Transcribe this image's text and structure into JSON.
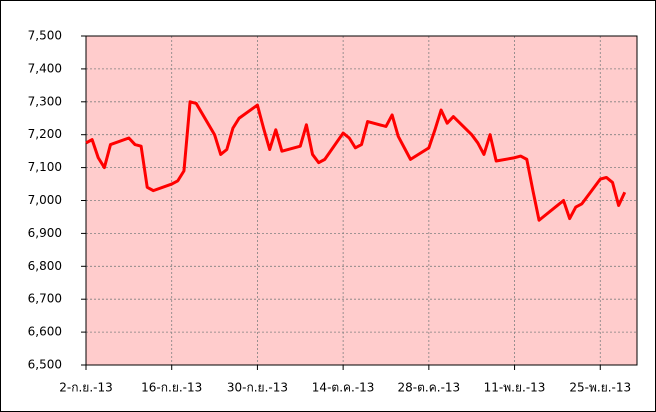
{
  "chart_data": {
    "type": "line",
    "x": [
      "2013-09-02",
      "2013-09-03",
      "2013-09-04",
      "2013-09-05",
      "2013-09-06",
      "2013-09-09",
      "2013-09-10",
      "2013-09-11",
      "2013-09-12",
      "2013-09-13",
      "2013-09-16",
      "2013-09-17",
      "2013-09-18",
      "2013-09-19",
      "2013-09-20",
      "2013-09-23",
      "2013-09-24",
      "2013-09-25",
      "2013-09-26",
      "2013-09-27",
      "2013-09-30",
      "2013-10-01",
      "2013-10-02",
      "2013-10-03",
      "2013-10-04",
      "2013-10-07",
      "2013-10-08",
      "2013-10-09",
      "2013-10-10",
      "2013-10-11",
      "2013-10-14",
      "2013-10-15",
      "2013-10-16",
      "2013-10-17",
      "2013-10-18",
      "2013-10-21",
      "2013-10-22",
      "2013-10-23",
      "2013-10-24",
      "2013-10-25",
      "2013-10-28",
      "2013-10-29",
      "2013-10-30",
      "2013-10-31",
      "2013-11-01",
      "2013-11-04",
      "2013-11-05",
      "2013-11-06",
      "2013-11-07",
      "2013-11-08",
      "2013-11-11",
      "2013-11-12",
      "2013-11-13",
      "2013-11-14",
      "2013-11-15",
      "2013-11-18",
      "2013-11-19",
      "2013-11-20",
      "2013-11-21",
      "2013-11-22",
      "2013-11-25",
      "2013-11-26",
      "2013-11-27",
      "2013-11-28",
      "2013-11-29"
    ],
    "series": [
      {
        "color": "#ff0000",
        "values": [
          7175,
          7185,
          7130,
          7100,
          7170,
          7190,
          7170,
          7165,
          7040,
          7030,
          7050,
          7060,
          7090,
          7300,
          7295,
          7200,
          7140,
          7155,
          7220,
          7250,
          7290,
          7220,
          7155,
          7215,
          7150,
          7165,
          7230,
          7140,
          7115,
          7125,
          7205,
          7190,
          7160,
          7170,
          7240,
          7225,
          7260,
          7195,
          7160,
          7125,
          7160,
          7215,
          7275,
          7235,
          7255,
          7200,
          7175,
          7140,
          7200,
          7120,
          7130,
          7135,
          7125,
          7030,
          6940,
          6985,
          7000,
          6945,
          6980,
          6990,
          7065,
          7070,
          7055,
          6985,
          7025
        ]
      }
    ],
    "xlim": [
      "2013-09-02",
      "2013-12-01"
    ],
    "xticks": [
      {
        "value": "2013-09-02",
        "label": "2-ก.ย.-13"
      },
      {
        "value": "2013-09-16",
        "label": "16-ก.ย.-13"
      },
      {
        "value": "2013-09-30",
        "label": "30-ก.ย.-13"
      },
      {
        "value": "2013-10-14",
        "label": "14-ต.ค.-13"
      },
      {
        "value": "2013-10-28",
        "label": "28-ต.ค.-13"
      },
      {
        "value": "2013-11-11",
        "label": "11-พ.ย.-13"
      },
      {
        "value": "2013-11-25",
        "label": "25-พ.ย.-13"
      }
    ],
    "ylim": [
      6500,
      7500
    ],
    "yticks": [
      {
        "value": 6500,
        "label": "6,500"
      },
      {
        "value": 6600,
        "label": "6,600"
      },
      {
        "value": 6700,
        "label": "6,700"
      },
      {
        "value": 6800,
        "label": "6,800"
      },
      {
        "value": 6900,
        "label": "6,900"
      },
      {
        "value": 7000,
        "label": "7,000"
      },
      {
        "value": 7100,
        "label": "7,100"
      },
      {
        "value": 7200,
        "label": "7,200"
      },
      {
        "value": 7300,
        "label": "7,300"
      },
      {
        "value": 7400,
        "label": "7,400"
      },
      {
        "value": 7500,
        "label": "7,500"
      }
    ],
    "grid": true,
    "plot_background": "#ffcccc"
  }
}
